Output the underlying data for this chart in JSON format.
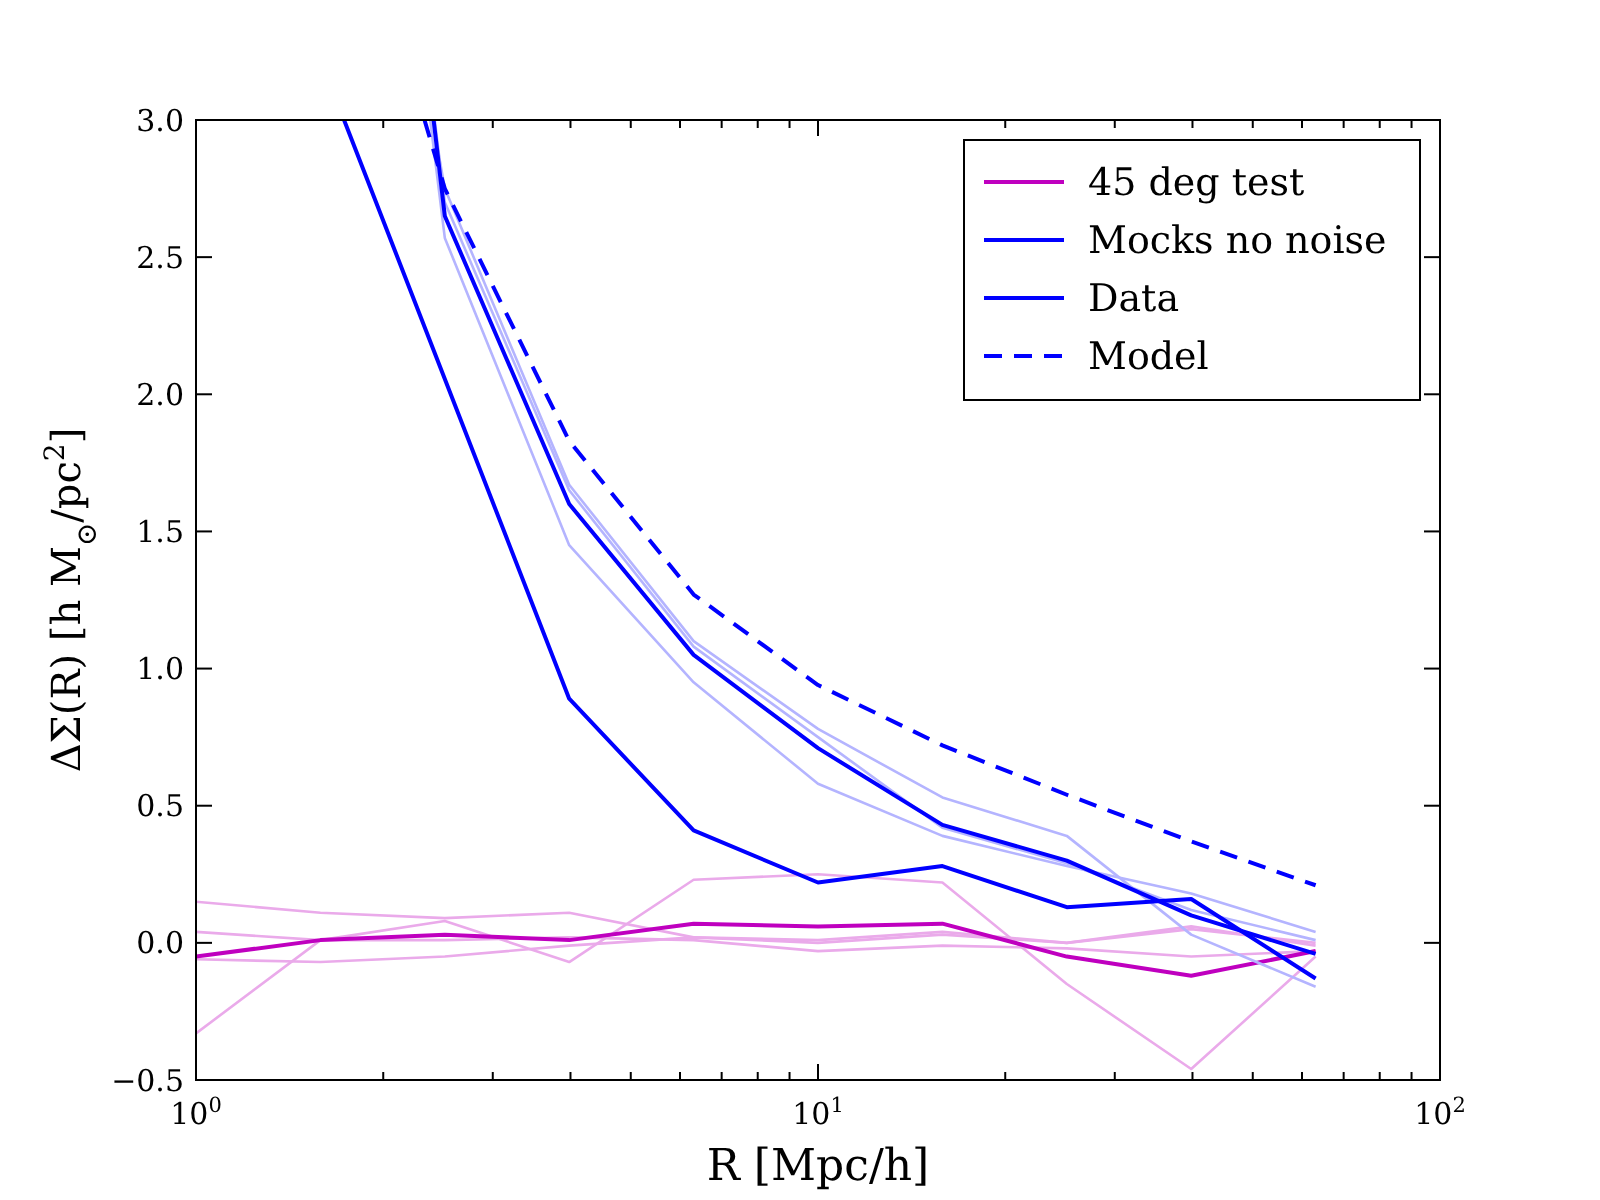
{
  "chart_data": {
    "type": "line",
    "xlabel": "R [Mpc/h]",
    "ylabel": "ΔΣ(R) [h M$_{⊙}$/pc$^{2}$]",
    "log": "x",
    "grid": false,
    "legend": "top right",
    "xlim": [
      1,
      100
    ],
    "ylim": [
      -0.5,
      3.0
    ],
    "xticks": [
      {
        "value": 1,
        "label": "10$^{0}$"
      },
      {
        "value": 2,
        "label": null
      },
      {
        "value": 3,
        "label": null
      },
      {
        "value": 4,
        "label": null
      },
      {
        "value": 5,
        "label": null
      },
      {
        "value": 6,
        "label": null
      },
      {
        "value": 7,
        "label": null
      },
      {
        "value": 8,
        "label": null
      },
      {
        "value": 9,
        "label": null
      },
      {
        "value": 10,
        "label": "10$^{1}$"
      },
      {
        "value": 20,
        "label": null
      },
      {
        "value": 30,
        "label": null
      },
      {
        "value": 40,
        "label": null
      },
      {
        "value": 50,
        "label": null
      },
      {
        "value": 60,
        "label": null
      },
      {
        "value": 70,
        "label": null
      },
      {
        "value": 80,
        "label": null
      },
      {
        "value": 90,
        "label": null
      },
      {
        "value": 100,
        "label": "10$^{2}$"
      }
    ],
    "yticks": [
      {
        "value": -0.5,
        "label": "−0.5"
      },
      {
        "value": 0,
        "label": "0.0"
      },
      {
        "value": 0.5,
        "label": "0.5"
      },
      {
        "value": 1,
        "label": "1.0"
      },
      {
        "value": 1.5,
        "label": "1.5"
      },
      {
        "value": 2,
        "label": "2.0"
      },
      {
        "value": 2.5,
        "label": "2.5"
      },
      {
        "value": 3,
        "label": "3.0"
      }
    ],
    "x": [
      1,
      1.585,
      2.512,
      3.981,
      6.31,
      10,
      15.85,
      25.12,
      39.81,
      63.1
    ],
    "series": [
      {
        "color": "#eaaaea",
        "values": [
          0.15,
          0.11,
          0.09,
          0.11,
          0.02,
          0.0,
          0.03,
          0.0,
          0.06,
          -0.01
        ]
      },
      {
        "color": "#eaaaea",
        "values": [
          -0.33,
          0.01,
          0.08,
          -0.07,
          0.23,
          0.25,
          0.22,
          -0.15,
          -0.46,
          -0.05
        ]
      },
      {
        "color": "#eaaaea",
        "values": [
          0.04,
          0.01,
          0.01,
          0.02,
          0.01,
          -0.03,
          -0.01,
          -0.02,
          -0.05,
          -0.03
        ]
      },
      {
        "color": "#eaaaea",
        "values": [
          -0.06,
          -0.07,
          -0.05,
          -0.01,
          0.02,
          0.01,
          0.04,
          0.0,
          0.05,
          0.0
        ]
      },
      {
        "name": "45 deg test",
        "color": "#bf00bf",
        "values": [
          -0.05,
          0.01,
          0.03,
          0.01,
          0.07,
          0.06,
          0.07,
          -0.05,
          -0.12,
          -0.03
        ]
      },
      {
        "color": "#b4b4ff",
        "x": [
          2.4,
          2.512,
          3.981,
          6.31,
          10,
          15.85,
          25.12,
          39.81,
          63.1
        ],
        "values": [
          3.0,
          2.75,
          1.67,
          1.1,
          0.78,
          0.53,
          0.39,
          0.03,
          -0.16
        ]
      },
      {
        "color": "#b4b4ff",
        "x": [
          2.38,
          2.512,
          3.981,
          6.31,
          10,
          15.85,
          25.12,
          39.81,
          63.1
        ],
        "values": [
          3.0,
          2.57,
          1.45,
          0.95,
          0.58,
          0.39,
          0.28,
          0.18,
          0.04
        ]
      },
      {
        "color": "#b4b4ff",
        "x": [
          2.42,
          2.512,
          3.981,
          6.31,
          10,
          15.85,
          25.12,
          39.81,
          63.1
        ],
        "values": [
          3.0,
          2.7,
          1.65,
          1.08,
          0.75,
          0.42,
          0.29,
          0.12,
          0.01
        ]
      },
      {
        "name": "Mocks no noise",
        "color": "#0000ff",
        "x": [
          2.41,
          2.512,
          3.981,
          6.31,
          10,
          15.85,
          25.12,
          39.81,
          63.1
        ],
        "values": [
          3.0,
          2.65,
          1.6,
          1.05,
          0.71,
          0.43,
          0.3,
          0.1,
          -0.04
        ]
      },
      {
        "name": "Data",
        "color": "#0000ff",
        "x": [
          1.73,
          3.981,
          6.31,
          10,
          15.85,
          25.12,
          39.81,
          63.1
        ],
        "values": [
          3.0,
          0.89,
          0.41,
          0.22,
          0.28,
          0.13,
          0.16,
          -0.13
        ]
      },
      {
        "name": "Model",
        "color": "#0000ff",
        "line_style": "dashed",
        "x": [
          2.33,
          2.512,
          3.981,
          6.31,
          10,
          15.85,
          25.12,
          39.81,
          63.1
        ],
        "values": [
          3.0,
          2.75,
          1.83,
          1.27,
          0.94,
          0.72,
          0.54,
          0.37,
          0.21
        ]
      }
    ]
  }
}
